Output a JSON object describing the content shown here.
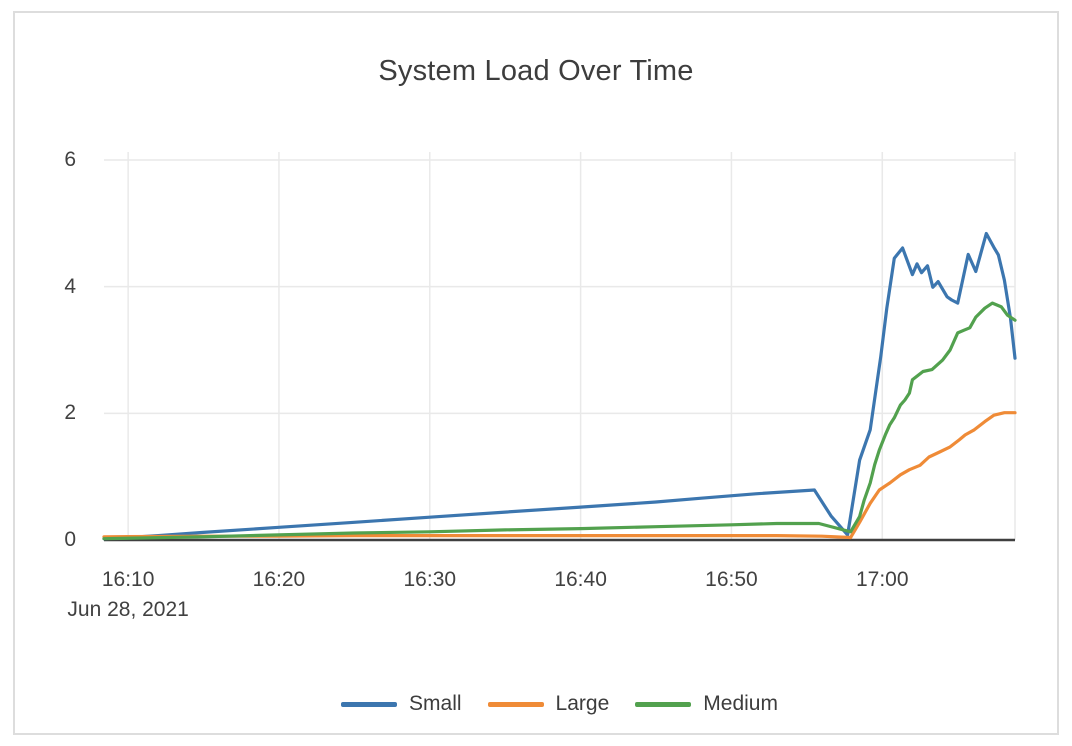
{
  "chart_data": {
    "type": "line",
    "title": "System Load Over Time",
    "date_label": "Jun 28, 2021",
    "x_unit": "minutes after 16:00, Jun 28 2021",
    "xlim": [
      8.4,
      68.8
    ],
    "ylim": [
      0,
      6
    ],
    "grid": true,
    "legend_position": "bottom-center",
    "axis_color": "#3f3f3f",
    "grid_color": "#e9e9e9",
    "x_ticks": [
      {
        "m": 10,
        "label": "16:10"
      },
      {
        "m": 20,
        "label": "16:20"
      },
      {
        "m": 30,
        "label": "16:30"
      },
      {
        "m": 40,
        "label": "16:40"
      },
      {
        "m": 50,
        "label": "16:50"
      },
      {
        "m": 60,
        "label": "17:00"
      }
    ],
    "y_ticks": [
      {
        "v": 0,
        "label": "0"
      },
      {
        "v": 2,
        "label": "2"
      },
      {
        "v": 4,
        "label": "4"
      },
      {
        "v": 6,
        "label": "6"
      }
    ],
    "series": [
      {
        "name": "Small",
        "color": "#3c76af",
        "points": [
          [
            8.4,
            0.02
          ],
          [
            10,
            0.04
          ],
          [
            12,
            0.07
          ],
          [
            15,
            0.12
          ],
          [
            20,
            0.2
          ],
          [
            25,
            0.28
          ],
          [
            30,
            0.36
          ],
          [
            35,
            0.44
          ],
          [
            40,
            0.52
          ],
          [
            45,
            0.6
          ],
          [
            48,
            0.66
          ],
          [
            51.6,
            0.73
          ],
          [
            55.5,
            0.79
          ],
          [
            56.6,
            0.38
          ],
          [
            57.7,
            0.08
          ],
          [
            58.5,
            1.26
          ],
          [
            59.2,
            1.74
          ],
          [
            59.9,
            2.9
          ],
          [
            60.3,
            3.66
          ],
          [
            60.8,
            4.45
          ],
          [
            61.35,
            4.61
          ],
          [
            62.0,
            4.19
          ],
          [
            62.3,
            4.36
          ],
          [
            62.6,
            4.22
          ],
          [
            63.0,
            4.33
          ],
          [
            63.35,
            3.99
          ],
          [
            63.7,
            4.08
          ],
          [
            64.3,
            3.84
          ],
          [
            64.6,
            3.79
          ],
          [
            65.0,
            3.74
          ],
          [
            65.7,
            4.51
          ],
          [
            66.2,
            4.24
          ],
          [
            66.9,
            4.84
          ],
          [
            67.4,
            4.62
          ],
          [
            67.7,
            4.5
          ],
          [
            68.1,
            4.1
          ],
          [
            68.5,
            3.5
          ],
          [
            68.8,
            2.87
          ]
        ]
      },
      {
        "name": "Large",
        "color": "#ef8b37",
        "points": [
          [
            8.4,
            0.05
          ],
          [
            15,
            0.06
          ],
          [
            20,
            0.06
          ],
          [
            25,
            0.07
          ],
          [
            30,
            0.07
          ],
          [
            35,
            0.07
          ],
          [
            40,
            0.07
          ],
          [
            45,
            0.07
          ],
          [
            50,
            0.07
          ],
          [
            53,
            0.07
          ],
          [
            56,
            0.06
          ],
          [
            57.9,
            0.04
          ],
          [
            58.5,
            0.28
          ],
          [
            59.2,
            0.58
          ],
          [
            59.8,
            0.79
          ],
          [
            60.5,
            0.9
          ],
          [
            61.2,
            1.03
          ],
          [
            61.8,
            1.11
          ],
          [
            62.5,
            1.18
          ],
          [
            63.1,
            1.31
          ],
          [
            63.8,
            1.39
          ],
          [
            64.5,
            1.47
          ],
          [
            65.1,
            1.58
          ],
          [
            65.5,
            1.66
          ],
          [
            66.1,
            1.74
          ],
          [
            66.8,
            1.87
          ],
          [
            67.4,
            1.97
          ],
          [
            68.1,
            2.01
          ],
          [
            68.8,
            2.01
          ]
        ]
      },
      {
        "name": "Medium",
        "color": "#52a14e",
        "points": [
          [
            8.4,
            0.02
          ],
          [
            15,
            0.05
          ],
          [
            20,
            0.08
          ],
          [
            25,
            0.11
          ],
          [
            30,
            0.13
          ],
          [
            35,
            0.16
          ],
          [
            40,
            0.18
          ],
          [
            45,
            0.21
          ],
          [
            50,
            0.24
          ],
          [
            53,
            0.26
          ],
          [
            55.8,
            0.26
          ],
          [
            57.9,
            0.13
          ],
          [
            58.5,
            0.37
          ],
          [
            58.8,
            0.63
          ],
          [
            59.2,
            0.9
          ],
          [
            59.5,
            1.19
          ],
          [
            59.8,
            1.42
          ],
          [
            60.2,
            1.66
          ],
          [
            60.5,
            1.82
          ],
          [
            60.8,
            1.93
          ],
          [
            61.2,
            2.13
          ],
          [
            61.5,
            2.21
          ],
          [
            61.8,
            2.32
          ],
          [
            62.0,
            2.53
          ],
          [
            62.7,
            2.66
          ],
          [
            63.3,
            2.69
          ],
          [
            64.0,
            2.84
          ],
          [
            64.5,
            3.0
          ],
          [
            65.0,
            3.27
          ],
          [
            65.5,
            3.32
          ],
          [
            65.8,
            3.35
          ],
          [
            66.2,
            3.52
          ],
          [
            66.8,
            3.66
          ],
          [
            67.3,
            3.74
          ],
          [
            67.9,
            3.68
          ],
          [
            68.3,
            3.55
          ],
          [
            68.8,
            3.47
          ]
        ]
      }
    ]
  }
}
